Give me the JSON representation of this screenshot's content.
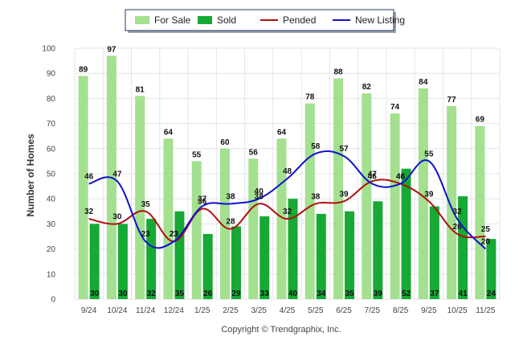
{
  "chart_data": {
    "type": "bar",
    "categories": [
      "9/24",
      "10/24",
      "11/24",
      "12/24",
      "1/25",
      "2/25",
      "3/25",
      "4/25",
      "5/25",
      "6/25",
      "7/25",
      "8/25",
      "9/25",
      "10/25",
      "11/25"
    ],
    "series": [
      {
        "name": "For Sale",
        "type": "bar",
        "color": "#a3e08f",
        "values": [
          89,
          97,
          81,
          64,
          55,
          60,
          56,
          64,
          78,
          88,
          82,
          74,
          84,
          77,
          69
        ]
      },
      {
        "name": "Sold",
        "type": "bar",
        "color": "#16a934",
        "values": [
          30,
          30,
          32,
          35,
          26,
          29,
          33,
          40,
          34,
          35,
          39,
          52,
          37,
          41,
          24
        ]
      },
      {
        "name": "Pended",
        "type": "line",
        "color": "#b01010",
        "values": [
          32,
          30,
          35,
          23,
          36,
          28,
          38,
          32,
          38,
          39,
          47,
          46,
          39,
          26,
          25
        ]
      },
      {
        "name": "New Listing",
        "type": "line",
        "color": "#1010d0",
        "values": [
          46,
          47,
          23,
          23,
          37,
          38,
          40,
          48,
          58,
          57,
          46,
          46,
          55,
          32,
          20
        ]
      }
    ],
    "ylabel": "Number of Homes",
    "xlabel": "",
    "ylim": [
      0,
      100
    ],
    "yticks": [
      0,
      10,
      20,
      30,
      40,
      50,
      60,
      70,
      80,
      90,
      100
    ],
    "grid": true,
    "legend": "top-center",
    "copyright": "Copyright © Trendgraphix, Inc."
  }
}
